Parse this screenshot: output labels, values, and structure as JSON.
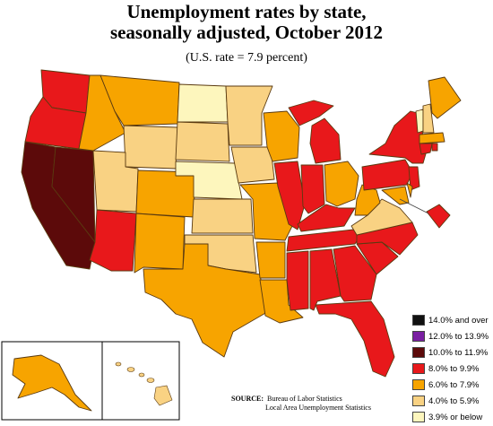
{
  "title_line1": "Unemployment rates by state,",
  "title_line2": "seasonally adjusted, October 2012",
  "subtitle": "(U.S. rate = 7.9 percent)",
  "colors": {
    "14_and_over": "#111111",
    "12_to_13_9": "#7a1fa2",
    "10_to_11_9": "#5c0a0a",
    "8_to_9_9": "#e8181b",
    "6_to_7_9": "#f7a400",
    "4_to_5_9": "#f9d283",
    "3_9_or_below": "#fdf6bd"
  },
  "legend": [
    {
      "label": "14.0% and over",
      "color": "#111111"
    },
    {
      "label": "12.0% to 13.9%",
      "color": "#7a1fa2"
    },
    {
      "label": "10.0% to 11.9%",
      "color": "#5c0a0a"
    },
    {
      "label": "8.0% to 9.9%",
      "color": "#e8181b"
    },
    {
      "label": "6.0% to 7.9%",
      "color": "#f7a400"
    },
    {
      "label": "4.0% to 5.9%",
      "color": "#f9d283"
    },
    {
      "label": "3.9% or below",
      "color": "#fdf6bd"
    }
  ],
  "source": {
    "label": "SOURCE:",
    "line1": "Bureau of Labor Statistics",
    "line2": "Local Area Unemployment Statistics"
  }
}
